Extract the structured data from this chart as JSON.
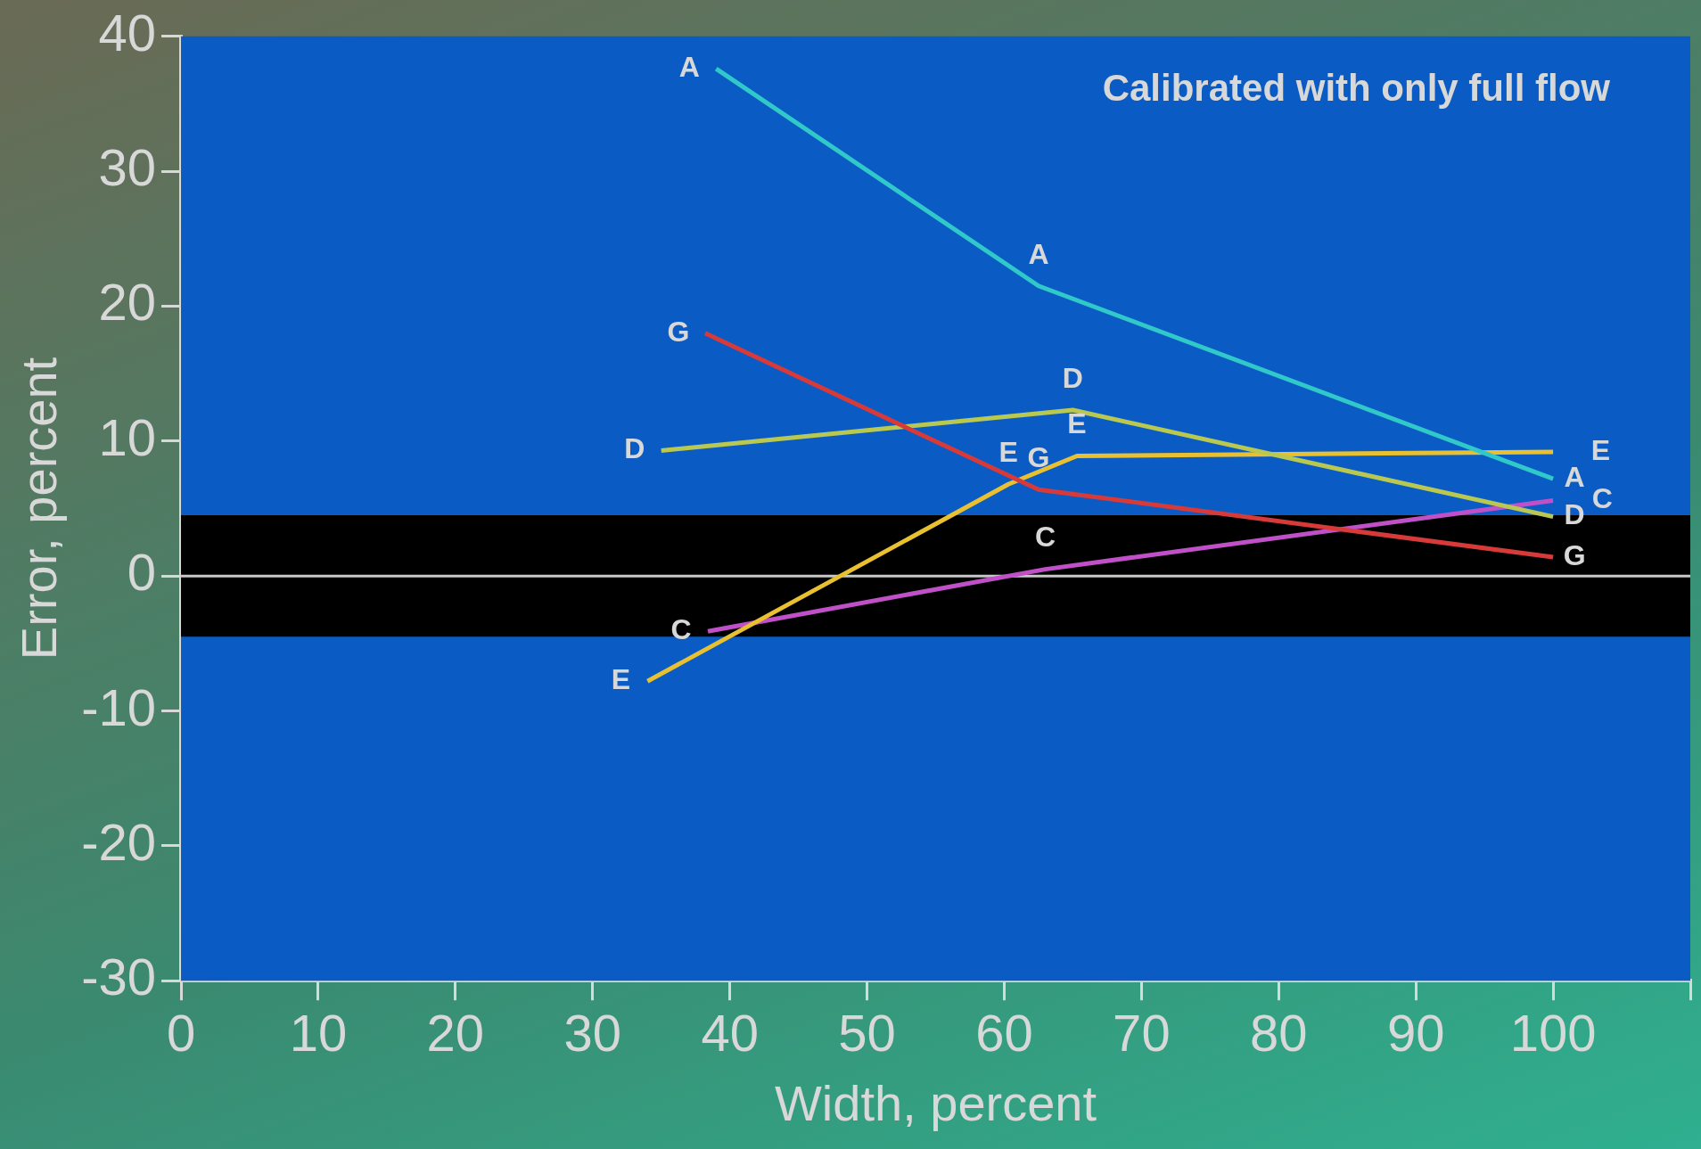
{
  "chart_data": {
    "type": "line",
    "xlabel": "Width, percent",
    "ylabel": "Error, percent",
    "xlim": [
      0,
      110
    ],
    "xticks": [
      0,
      10,
      20,
      30,
      40,
      50,
      60,
      70,
      80,
      90,
      100,
      {
        "value": 110,
        "label": null
      }
    ],
    "ylim": [
      -30,
      40
    ],
    "yticks": [
      -30,
      -20,
      -10,
      0,
      10,
      20,
      30,
      40
    ],
    "grid": false,
    "legend": false,
    "marker": "none",
    "line_style": "solid",
    "annotations": [
      "Calibrated with only full flow"
    ],
    "bands": [
      {
        "axis": "y",
        "from": -4.5,
        "to": 4.5,
        "color": "#000000"
      }
    ],
    "ref_lines": [
      {
        "axis": "y",
        "value": 0,
        "color": "#c8c8c8"
      }
    ],
    "series": [
      {
        "name": "A",
        "color": "#30c8c8",
        "x": [
          39,
          62.5,
          100
        ],
        "values": [
          37.6,
          21.5,
          7.2
        ]
      },
      {
        "name": "G",
        "color": "#d83a3a",
        "x": [
          38.2,
          62.5,
          100
        ],
        "values": [
          18,
          6.4,
          1.4
        ]
      },
      {
        "name": "D",
        "color": "#b8c850",
        "x": [
          35,
          65,
          100
        ],
        "values": [
          9.3,
          12.3,
          4.4
        ]
      },
      {
        "name": "E",
        "color": "#e8c030",
        "x": [
          34,
          60.3,
          65.3,
          100
        ],
        "values": [
          -7.8,
          6.8,
          8.9,
          9.2
        ]
      },
      {
        "name": "C",
        "color": "#c050c8",
        "x": [
          38.4,
          63,
          100
        ],
        "values": [
          -4.1,
          0.5,
          5.6
        ]
      }
    ]
  }
}
